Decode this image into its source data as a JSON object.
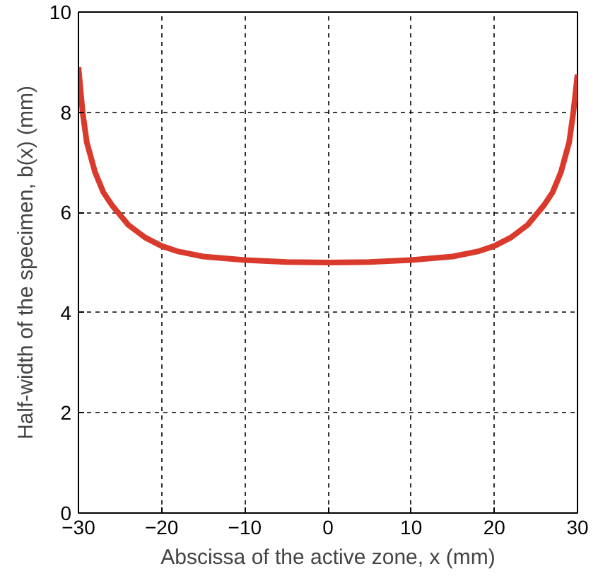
{
  "chart_data": {
    "type": "line",
    "xlabel": "Abscissa of the active zone, x (mm)",
    "ylabel": "Half-width of the specimen, b(x) (mm)",
    "x": [
      -30,
      -29.5,
      -29,
      -28,
      -27,
      -26,
      -25,
      -24,
      -22,
      -20,
      -18,
      -15,
      -10,
      -5,
      0,
      5,
      10,
      15,
      18,
      20,
      22,
      24,
      25,
      26,
      27,
      28,
      29,
      29.5,
      30
    ],
    "series": [
      {
        "color": "#d93a2b",
        "values": [
          8.9,
          8.0,
          7.4,
          6.8,
          6.4,
          6.15,
          5.95,
          5.75,
          5.5,
          5.33,
          5.22,
          5.12,
          5.05,
          5.01,
          5.0,
          5.01,
          5.05,
          5.12,
          5.22,
          5.33,
          5.5,
          5.75,
          5.95,
          6.15,
          6.4,
          6.8,
          7.4,
          8.0,
          8.75
        ]
      }
    ],
    "xlim": [
      -30,
      30
    ],
    "ylim": [
      0,
      10
    ],
    "xticks": [
      -30,
      -20,
      -10,
      0,
      10,
      20,
      30
    ],
    "yticks": [
      0,
      2,
      4,
      6,
      8,
      10
    ],
    "grid": true,
    "marker": "none",
    "line_style": "solid"
  }
}
